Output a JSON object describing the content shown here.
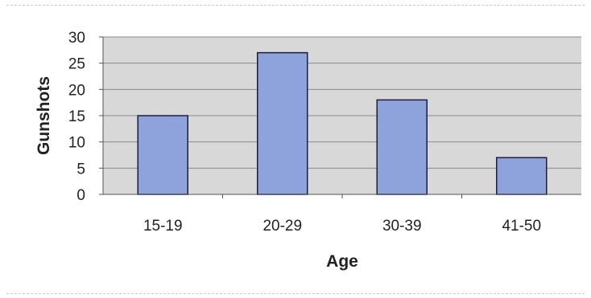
{
  "chart_data": {
    "type": "bar",
    "categories": [
      "15-19",
      "20-29",
      "30-39",
      "41-50"
    ],
    "values": [
      15,
      27,
      18,
      7
    ],
    "xlabel": "Age",
    "ylabel": "Gunshots",
    "ylim": [
      0,
      30
    ],
    "yticks": [
      "0",
      "5",
      "10",
      "15",
      "20",
      "25",
      "30"
    ],
    "grid": true,
    "legend": "none"
  },
  "colors": {
    "bar_fill": "#8ea2dc",
    "bar_stroke": "#1c1c3c",
    "plot_bg": "#d8d8d8",
    "grid": "#8a8a8a"
  }
}
